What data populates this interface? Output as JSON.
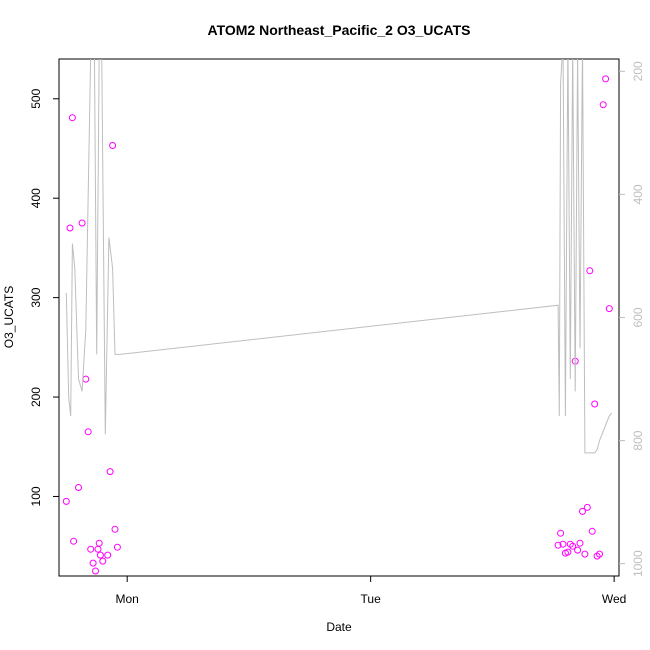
{
  "chart_data": {
    "type": "scatter",
    "title": "ATOM2 Northeast_Pacific_2 O3_UCATS",
    "xlabel": "Date",
    "ylabel": "O3_UCATS",
    "x_ticks": [
      "Mon",
      "Tue",
      "Wed"
    ],
    "y_ticks": [
      100,
      200,
      300,
      400,
      500
    ],
    "y_right_ticks": [
      200,
      400,
      600,
      800,
      1000
    ],
    "xlim": [
      -0.28,
      2.02
    ],
    "ylim": [
      20,
      540
    ],
    "y_right_lim": [
      1020,
      180
    ],
    "y_right_reversed": true,
    "colors": {
      "points": "#ff00ff",
      "line": "#bebebe",
      "axis": "#000000",
      "right_axis": "#bebebe"
    },
    "series": [
      {
        "type": "scatter",
        "x": [
          -0.25,
          -0.235,
          -0.225,
          -0.22,
          -0.2,
          -0.185,
          -0.17,
          -0.16,
          -0.15,
          -0.14,
          -0.13,
          -0.12,
          -0.115,
          -0.11,
          -0.1,
          -0.08,
          -0.07,
          -0.06,
          -0.05,
          -0.04,
          1.77,
          1.78,
          1.79,
          1.8,
          1.81,
          1.82,
          1.83,
          1.84,
          1.85,
          1.86,
          1.87,
          1.88,
          1.89,
          1.9,
          1.91,
          1.92,
          1.93
        ],
        "y": [
          95,
          370,
          481,
          55,
          109,
          375,
          218,
          165,
          47,
          33,
          25,
          47,
          53,
          41,
          35,
          41,
          125,
          453,
          67,
          49,
          51,
          63,
          52,
          43,
          44,
          52,
          50,
          236,
          46,
          53,
          85,
          42,
          89,
          327,
          65,
          193,
          40
        ]
      },
      {
        "type": "scatter",
        "x": [
          1.94,
          1.955,
          1.965,
          1.98
        ],
        "y": [
          42,
          494,
          520,
          289
        ]
      },
      {
        "type": "line",
        "axis": "right",
        "x": [
          -0.25,
          -0.24,
          -0.232,
          -0.225,
          -0.215,
          -0.2,
          -0.185,
          -0.17,
          -0.15,
          -0.135,
          -0.125,
          -0.115,
          -0.105,
          -0.09,
          -0.075,
          -0.06,
          -0.05,
          -0.04,
          -0.03,
          1.77,
          1.775,
          1.78,
          1.79,
          1.8,
          1.81,
          1.82,
          1.83,
          1.84,
          1.85,
          1.86,
          1.87,
          1.88,
          1.89,
          1.9,
          1.91,
          1.92,
          1.93,
          1.94,
          1.95,
          1.96,
          1.97,
          1.98,
          1.99
        ],
        "y": [
          560,
          730,
          760,
          480,
          520,
          700,
          720,
          620,
          170,
          140,
          660,
          170,
          150,
          790,
          470,
          520,
          660,
          660,
          660,
          580,
          760,
          220,
          150,
          760,
          150,
          700,
          160,
          720,
          170,
          650,
          150,
          820,
          820,
          820,
          820,
          820,
          815,
          800,
          790,
          780,
          770,
          760,
          755
        ]
      }
    ]
  }
}
